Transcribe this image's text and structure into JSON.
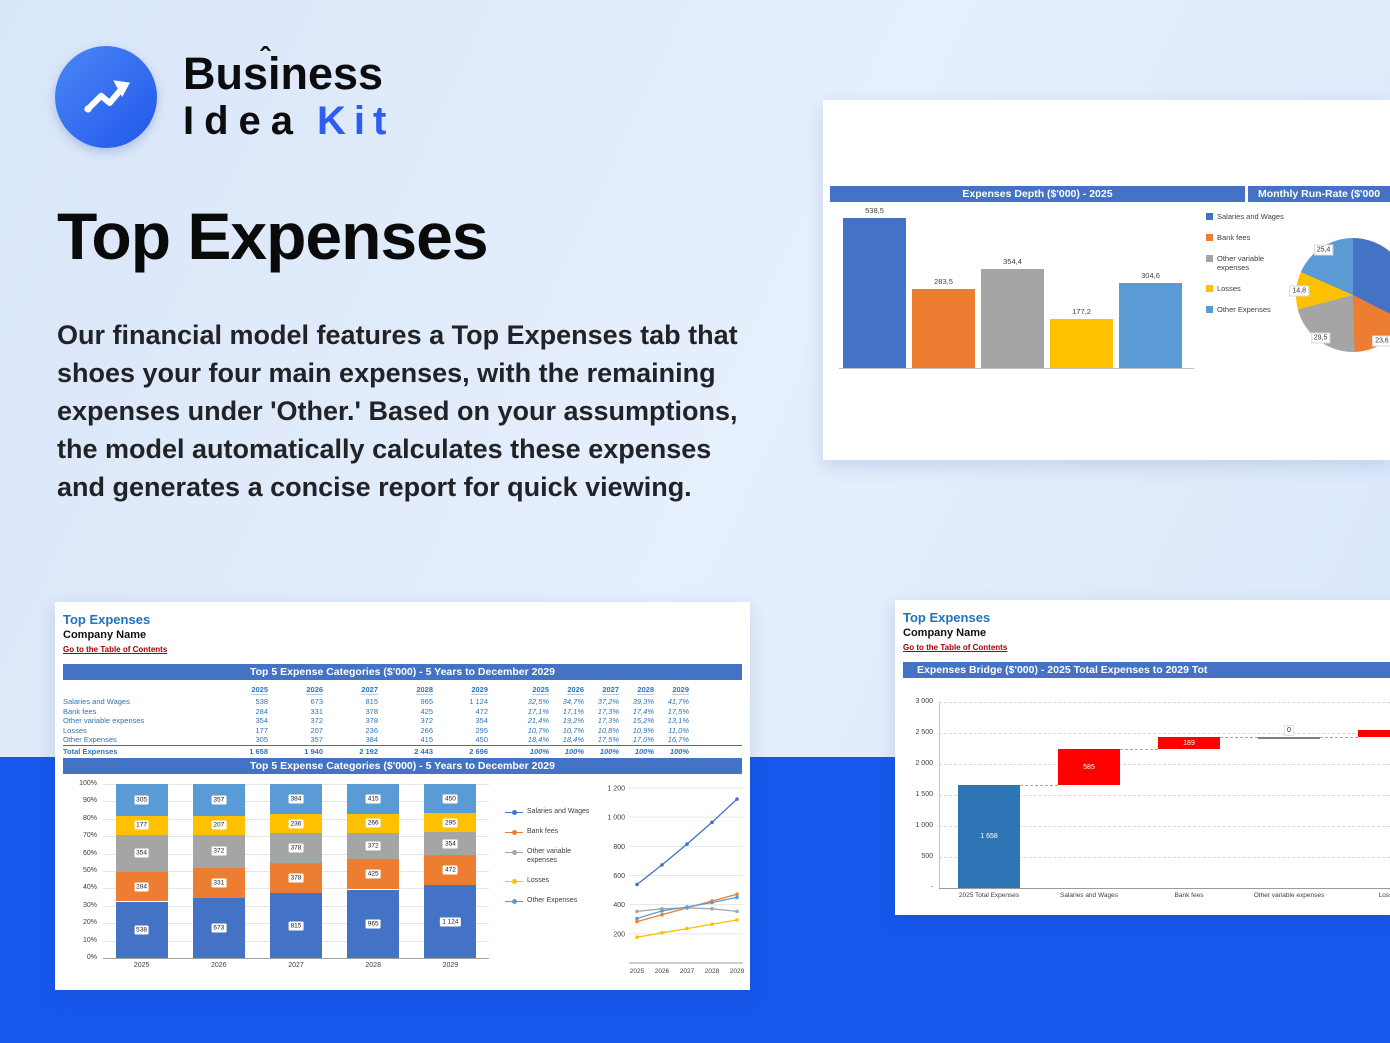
{
  "brand": {
    "word_top": "Business",
    "accent": "ˆ",
    "word_bottom_black": "Idea",
    "word_bottom_blue": "Kit"
  },
  "hero": {
    "title": "Top Expenses",
    "description": "Our financial model features a Top Expenses tab that shoes your four main expenses, with the remaining expenses under 'Other.' Based on your assumptions, the model automatically calculates these expenses and generates a concise report for quick viewing."
  },
  "colors": {
    "series": [
      "#4472C4",
      "#ED7D31",
      "#A5A5A5",
      "#FFC000",
      "#5B9BD5"
    ],
    "excel_header": "#4472C4",
    "waterfall_total": "#2E75B6",
    "waterfall_increase": "#FF0000",
    "band_blue": "#1657EC"
  },
  "depth_card": {
    "header_left": "Expenses Depth ($'000) - 2025",
    "header_right": "Monthly Run-Rate ($'000",
    "bar_chart_data": {
      "type": "bar",
      "categories": [
        "Salaries and Wages",
        "Bank fees",
        "Other variable expenses",
        "Losses",
        "Other Expenses"
      ],
      "values": [
        538.5,
        283.5,
        354.4,
        177.2,
        304.6
      ],
      "value_labels": [
        "538,5",
        "283,5",
        "354,4",
        "177,2",
        "304,6"
      ],
      "legend": [
        "Salaries and Wages",
        "Bank fees",
        "Other variable expenses",
        "Losses",
        "Other Expenses"
      ]
    },
    "pie_chart_data": {
      "type": "pie",
      "values": [
        44.9,
        23.6,
        29.5,
        14.8,
        25.4
      ],
      "visible_labels": [
        "",
        "23,6",
        "29,5",
        "14,8",
        "25,4"
      ]
    }
  },
  "sheet_card": {
    "sheet_title": "Top Expenses",
    "company": "Company Name",
    "toc_link": "Go to the Table of Contents",
    "table_header": "Top 5 Expense Categories ($'000) - 5 Years to December 2029",
    "chart_header": "Top 5 Expense Categories ($'000) - 5 Years to December 2029",
    "years": [
      "2025",
      "2026",
      "2027",
      "2028",
      "2029"
    ],
    "rows": [
      {
        "label": "Salaries and Wages",
        "values": [
          "538",
          "673",
          "815",
          "965",
          "1 124"
        ],
        "pct": [
          "32,5%",
          "34,7%",
          "37,2%",
          "39,3%",
          "41,7%"
        ]
      },
      {
        "label": "Bank fees",
        "values": [
          "284",
          "331",
          "378",
          "425",
          "472"
        ],
        "pct": [
          "17,1%",
          "17,1%",
          "17,3%",
          "17,4%",
          "17,5%"
        ]
      },
      {
        "label": "Other variable expenses",
        "values": [
          "354",
          "372",
          "378",
          "372",
          "354"
        ],
        "pct": [
          "21,4%",
          "19,2%",
          "17,3%",
          "15,2%",
          "13,1%"
        ]
      },
      {
        "label": "Losses",
        "values": [
          "177",
          "207",
          "236",
          "266",
          "295"
        ],
        "pct": [
          "10,7%",
          "10,7%",
          "10,8%",
          "10,9%",
          "11,0%"
        ]
      },
      {
        "label": "Other Expenses",
        "values": [
          "305",
          "357",
          "384",
          "415",
          "450"
        ],
        "pct": [
          "18,4%",
          "18,4%",
          "17,5%",
          "17,0%",
          "16,7%"
        ]
      }
    ],
    "total_row": {
      "label": "Total Expenses",
      "values": [
        "1 658",
        "1 940",
        "2 192",
        "2 443",
        "2 696"
      ],
      "pct": [
        "100%",
        "100%",
        "100%",
        "100%",
        "100%"
      ]
    },
    "stacked_chart_data": {
      "type": "bar",
      "stacked": true,
      "categories": [
        "2025",
        "2026",
        "2027",
        "2028",
        "2029"
      ],
      "y_ticks": [
        "100%",
        "90%",
        "80%",
        "70%",
        "60%",
        "50%",
        "40%",
        "30%",
        "20%",
        "10%",
        "0%"
      ],
      "series": [
        {
          "name": "Salaries and Wages",
          "pct": [
            32.5,
            34.7,
            37.2,
            39.3,
            41.7
          ],
          "labels": [
            "538",
            "673",
            "815",
            "965",
            "1 124"
          ]
        },
        {
          "name": "Bank fees",
          "pct": [
            17.1,
            17.1,
            17.3,
            17.4,
            17.5
          ],
          "labels": [
            "284",
            "331",
            "378",
            "425",
            "472"
          ]
        },
        {
          "name": "Other variable expenses",
          "pct": [
            21.4,
            19.2,
            17.3,
            15.2,
            13.1
          ],
          "labels": [
            "354",
            "372",
            "378",
            "372",
            "354"
          ]
        },
        {
          "name": "Losses",
          "pct": [
            10.7,
            10.7,
            10.8,
            10.9,
            11.0
          ],
          "labels": [
            "177",
            "207",
            "236",
            "266",
            "295"
          ]
        },
        {
          "name": "Other Expenses",
          "pct": [
            18.4,
            18.4,
            17.5,
            17.0,
            16.7
          ],
          "labels": [
            "305",
            "357",
            "384",
            "415",
            "450"
          ]
        }
      ]
    },
    "legend": [
      "Salaries and Wages",
      "Bank fees",
      "Other variable expenses",
      "Losses",
      "Other Expenses"
    ],
    "line_chart_data": {
      "type": "line",
      "x": [
        "2025",
        "2026",
        "2027",
        "2028",
        "2029"
      ],
      "y_ticks": [
        "1 200",
        "1 000",
        "800",
        "600",
        "400",
        "200"
      ],
      "y_max": 1200,
      "series": [
        {
          "name": "Salaries and Wages",
          "values": [
            538,
            673,
            815,
            965,
            1124
          ]
        },
        {
          "name": "Bank fees",
          "values": [
            284,
            331,
            378,
            425,
            472
          ]
        },
        {
          "name": "Other variable expenses",
          "values": [
            354,
            372,
            378,
            372,
            354
          ]
        },
        {
          "name": "Losses",
          "values": [
            177,
            207,
            236,
            266,
            295
          ]
        },
        {
          "name": "Other Expenses",
          "values": [
            305,
            357,
            384,
            415,
            450
          ]
        }
      ]
    }
  },
  "bridge_card": {
    "sheet_title": "Top Expenses",
    "company": "Company Name",
    "toc_link": "Go to the Table of Contents",
    "header": "Expenses Bridge ($'000) - 2025 Total Expenses to 2029 Tot",
    "chart_data": {
      "type": "waterfall",
      "categories": [
        "2025 Total Expenses",
        "Salaries and Wages",
        "Bank fees",
        "Other variable expenses",
        "Losses"
      ],
      "y_ticks": [
        "3 000",
        "2 500",
        "2 000",
        "1 500",
        "1 000",
        "500",
        "-"
      ],
      "y_max": 3000,
      "bars": [
        {
          "kind": "total",
          "start": 0,
          "end": 1658,
          "label": "1 658"
        },
        {
          "kind": "increase",
          "start": 1658,
          "end": 2243,
          "label": "585"
        },
        {
          "kind": "increase",
          "start": 2243,
          "end": 2432,
          "label": "189"
        },
        {
          "kind": "zero",
          "start": 2432,
          "end": 2432,
          "label": "0"
        },
        {
          "kind": "increase",
          "start": 2432,
          "end": 2550,
          "label": ""
        }
      ]
    }
  }
}
